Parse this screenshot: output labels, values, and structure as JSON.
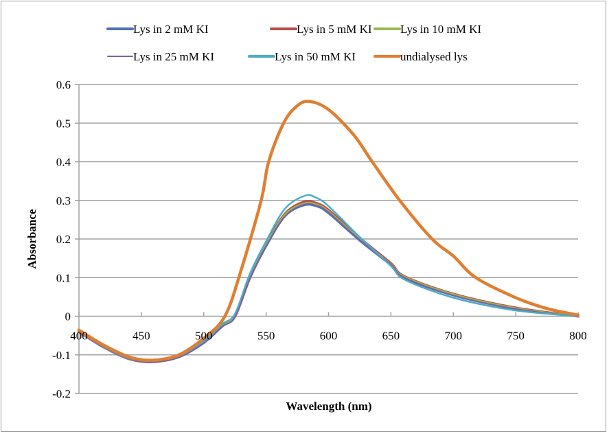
{
  "chart_data": {
    "type": "line",
    "title": "",
    "xlabel": "Wavelength (nm)",
    "ylabel": "Absorbance",
    "xlim": [
      400,
      800
    ],
    "ylim": [
      -0.2,
      0.6
    ],
    "xticks": [
      400,
      450,
      500,
      550,
      600,
      650,
      700,
      750,
      800
    ],
    "xtick_labels": [
      "400",
      "450",
      "500",
      "550",
      "600",
      "650",
      "700",
      "750",
      "800"
    ],
    "yticks": [
      -0.2,
      -0.1,
      0,
      0.1,
      0.2,
      0.3,
      0.4,
      0.5,
      0.6
    ],
    "ytick_labels": [
      "-0.2",
      "-0.1",
      "0",
      "0.1",
      "0.2",
      "0.3",
      "0.4",
      "0.5",
      "0.6"
    ],
    "grid": "horizontal",
    "legend_position": "top",
    "series": [
      {
        "name": "Lys in 2 mM KI",
        "color": "#4a74b5",
        "x": [
          400,
          420,
          440,
          458,
          480,
          500,
          515,
          525,
          537,
          550,
          565,
          580,
          590,
          600,
          625,
          650,
          661,
          700,
          750,
          800
        ],
        "values": [
          -0.04,
          -0.08,
          -0.11,
          -0.118,
          -0.105,
          -0.068,
          -0.025,
          0.0,
          0.1,
          0.183,
          0.26,
          0.288,
          0.286,
          0.268,
          0.197,
          0.133,
          0.1,
          0.055,
          0.02,
          0.0
        ]
      },
      {
        "name": "Lys in 5 mM KI",
        "color": "#be4b48",
        "x": [
          400,
          420,
          440,
          458,
          480,
          500,
          515,
          525,
          537,
          550,
          565,
          580,
          590,
          600,
          625,
          650,
          661,
          700,
          750,
          800
        ],
        "values": [
          -0.04,
          -0.08,
          -0.11,
          -0.118,
          -0.105,
          -0.067,
          -0.024,
          0.0,
          0.1,
          0.186,
          0.265,
          0.296,
          0.293,
          0.275,
          0.203,
          0.137,
          0.103,
          0.058,
          0.022,
          0.0
        ]
      },
      {
        "name": "Lys in 10 mM KI",
        "color": "#98b954",
        "x": [
          400,
          420,
          440,
          458,
          480,
          500,
          515,
          525,
          537,
          550,
          565,
          580,
          590,
          600,
          625,
          650,
          661,
          700,
          750,
          800
        ],
        "values": [
          -0.04,
          -0.08,
          -0.11,
          -0.118,
          -0.105,
          -0.067,
          -0.024,
          0.0,
          0.1,
          0.185,
          0.263,
          0.292,
          0.29,
          0.272,
          0.2,
          0.135,
          0.102,
          0.057,
          0.021,
          0.0
        ]
      },
      {
        "name": "Lys in 25 mM KI",
        "color": "#7d5fa0",
        "x": [
          400,
          420,
          440,
          458,
          480,
          500,
          515,
          525,
          537,
          550,
          565,
          580,
          590,
          600,
          625,
          650,
          661,
          700,
          750,
          800
        ],
        "values": [
          -0.04,
          -0.08,
          -0.11,
          -0.119,
          -0.106,
          -0.069,
          -0.026,
          -0.002,
          0.098,
          0.182,
          0.259,
          0.289,
          0.287,
          0.269,
          0.198,
          0.134,
          0.1,
          0.054,
          0.019,
          0.0
        ]
      },
      {
        "name": "Lys in 50 mM KI",
        "color": "#4bacc6",
        "x": [
          400,
          420,
          440,
          458,
          480,
          500,
          515,
          525,
          537,
          550,
          565,
          581,
          590,
          600,
          625,
          650,
          661,
          700,
          750,
          800
        ],
        "values": [
          -0.038,
          -0.078,
          -0.108,
          -0.116,
          -0.103,
          -0.064,
          -0.02,
          0.006,
          0.11,
          0.194,
          0.278,
          0.312,
          0.307,
          0.285,
          0.205,
          0.13,
          0.095,
          0.048,
          0.015,
          0.0
        ]
      },
      {
        "name": "undialysed lys",
        "color": "#e07e32",
        "x": [
          400,
          420,
          440,
          458,
          480,
          500,
          517,
          530,
          546,
          552,
          564,
          575,
          585,
          600,
          620,
          635,
          657,
          683,
          700,
          718,
          750,
          775,
          800
        ],
        "values": [
          -0.036,
          -0.075,
          -0.105,
          -0.114,
          -0.1,
          -0.057,
          0.0,
          0.12,
          0.3,
          0.4,
          0.5,
          0.545,
          0.556,
          0.535,
          0.47,
          0.4,
          0.3,
          0.2,
          0.156,
          0.1,
          0.048,
          0.02,
          0.003
        ]
      }
    ]
  }
}
